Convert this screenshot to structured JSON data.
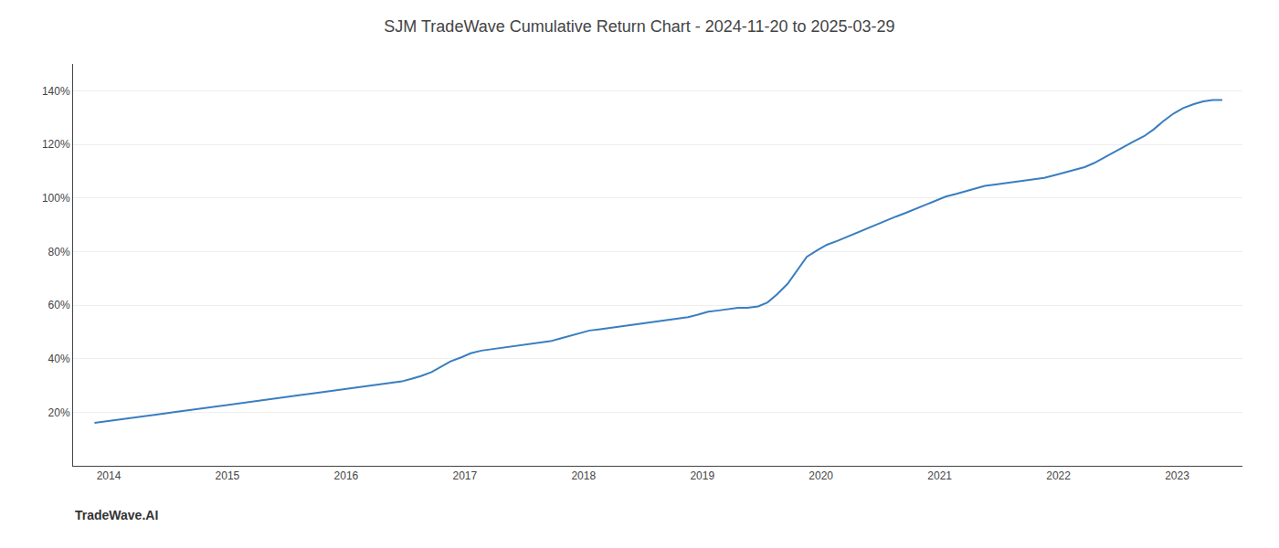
{
  "chart_data": {
    "type": "line",
    "title": "SJM TradeWave Cumulative Return Chart - 2024-11-20 to 2025-03-29",
    "annotations": [
      "TradeWave.AI"
    ],
    "color": "#3a7ebf",
    "x": [
      2013.88,
      2013.97,
      2014.05,
      2014.14,
      2014.22,
      2014.3,
      2014.38,
      2014.47,
      2014.55,
      2014.63,
      2014.72,
      2014.8,
      2014.88,
      2014.97,
      2015.05,
      2015.14,
      2015.22,
      2015.3,
      2015.38,
      2015.47,
      2015.55,
      2015.63,
      2015.72,
      2015.8,
      2015.88,
      2015.97,
      2016.05,
      2016.14,
      2016.22,
      2016.3,
      2016.38,
      2016.47,
      2016.55,
      2016.63,
      2016.72,
      2016.8,
      2016.88,
      2016.97,
      2017.05,
      2017.14,
      2017.22,
      2017.3,
      2017.38,
      2017.47,
      2017.55,
      2017.63,
      2017.72,
      2017.8,
      2017.88,
      2017.97,
      2018.05,
      2018.14,
      2018.22,
      2018.3,
      2018.38,
      2018.47,
      2018.55,
      2018.63,
      2018.72,
      2018.8,
      2018.88,
      2018.97,
      2019.05,
      2019.14,
      2019.22,
      2019.3,
      2019.38,
      2019.47,
      2019.55,
      2019.63,
      2019.72,
      2019.8,
      2019.88,
      2019.97,
      2020.05,
      2020.14,
      2020.22,
      2020.3,
      2020.38,
      2020.47,
      2020.55,
      2020.63,
      2020.72,
      2020.8,
      2020.88,
      2020.97,
      2021.05,
      2021.14,
      2021.22,
      2021.3,
      2021.38,
      2021.47,
      2021.55,
      2021.63,
      2021.72,
      2021.8,
      2021.88,
      2021.97,
      2022.05,
      2022.14,
      2022.22,
      2022.3,
      2022.38,
      2022.47,
      2022.55,
      2022.63,
      2022.72,
      2022.8,
      2022.88,
      2022.97,
      2023.05,
      2023.14,
      2023.22,
      2023.3,
      2023.38
    ],
    "values": [
      16.0,
      16.5,
      17.0,
      17.5,
      18.0,
      18.5,
      19.0,
      19.5,
      20.0,
      20.5,
      21.0,
      21.5,
      22.0,
      22.5,
      23.0,
      23.5,
      24.0,
      24.5,
      25.0,
      25.5,
      26.0,
      26.5,
      27.0,
      27.5,
      28.0,
      28.5,
      29.0,
      29.5,
      30.0,
      30.5,
      31.0,
      31.5,
      32.5,
      33.5,
      35.0,
      37.0,
      39.0,
      40.5,
      42.0,
      43.0,
      43.5,
      44.0,
      44.5,
      45.0,
      45.5,
      46.0,
      46.5,
      47.5,
      48.5,
      49.5,
      50.5,
      51.0,
      51.5,
      52.0,
      52.5,
      53.0,
      53.5,
      54.0,
      54.5,
      55.0,
      55.5,
      56.5,
      57.5,
      58.0,
      58.5,
      59.0,
      59.0,
      59.5,
      61.0,
      64.0,
      68.0,
      73.0,
      78.0,
      80.5,
      82.5,
      84.0,
      85.5,
      87.0,
      88.5,
      90.0,
      91.5,
      93.0,
      94.5,
      96.0,
      97.5,
      99.0,
      100.5,
      101.5,
      102.5,
      103.5,
      104.5,
      105.0,
      105.5,
      106.0,
      106.5,
      107.0,
      107.5,
      108.5,
      109.5,
      110.5,
      111.5,
      113.0,
      115.0,
      117.0,
      119.0,
      121.0,
      123.0,
      125.5,
      128.5,
      131.5,
      133.5,
      135.0,
      136.0,
      136.5,
      136.5
    ],
    "xlim": [
      2013.7,
      2023.55
    ],
    "xticks": [
      2014,
      2015,
      2016,
      2017,
      2018,
      2019,
      2020,
      2021,
      2022,
      2023
    ],
    "ylim": [
      0,
      150
    ],
    "yticks": [
      {
        "value": 20,
        "label": "20%"
      },
      {
        "value": 40,
        "label": "40%"
      },
      {
        "value": 60,
        "label": "60%"
      },
      {
        "value": 80,
        "label": "80%"
      },
      {
        "value": 100,
        "label": "100%"
      },
      {
        "value": 120,
        "label": "120%"
      },
      {
        "value": 140,
        "label": "140%"
      }
    ],
    "grid": "y"
  }
}
